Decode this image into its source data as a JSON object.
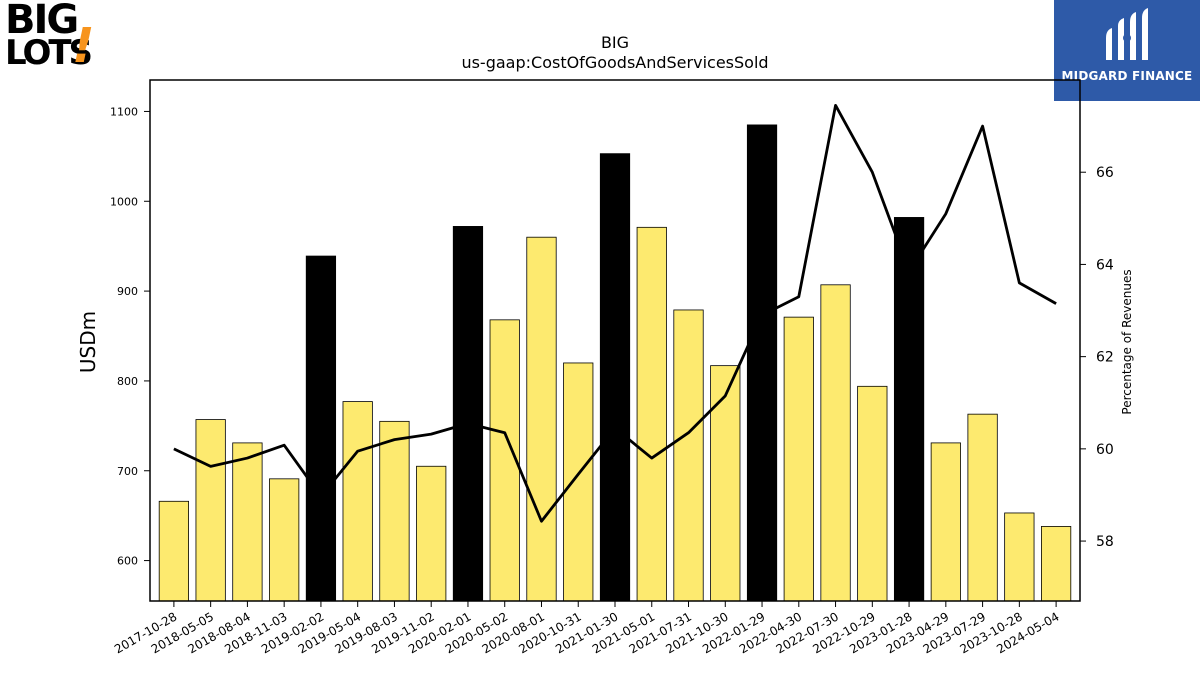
{
  "logos": {
    "company_line1": "BIG",
    "company_line2": "LOTS",
    "company_mark": "!",
    "partner_text": "MIDGARD FINANCE",
    "partner_icon": "midgard-m-icon"
  },
  "colors": {
    "bar_regular": "#fdea6f",
    "bar_highlight": "#000000",
    "line": "#000000",
    "partner_bg": "#2e5aa8",
    "brand_orange": "#f7941d"
  },
  "chart_data": {
    "type": "bar",
    "title": "BIG",
    "subtitle": "us-gaap:CostOfGoodsAndServicesSold",
    "ylabel": "USDm",
    "y2label": "Percentage of Revenues",
    "ylim": [
      555,
      1135
    ],
    "y2lim": [
      56.7,
      68.0
    ],
    "yticks": [
      600,
      700,
      800,
      900,
      1000,
      1100
    ],
    "y2ticks": [
      58,
      60,
      62,
      64,
      66
    ],
    "categories": [
      "2017-10-28",
      "2018-05-05",
      "2018-08-04",
      "2018-11-03",
      "2019-02-02",
      "2019-05-04",
      "2019-08-03",
      "2019-11-02",
      "2020-02-01",
      "2020-05-02",
      "2020-08-01",
      "2020-10-31",
      "2021-01-30",
      "2021-05-01",
      "2021-07-31",
      "2021-10-30",
      "2022-01-29",
      "2022-04-30",
      "2022-07-30",
      "2022-10-29",
      "2023-01-28",
      "2023-04-29",
      "2023-07-29",
      "2023-10-28",
      "2024-05-04"
    ],
    "series": [
      {
        "kind": "bar",
        "axis": "left",
        "values": [
          666,
          757,
          731,
          691,
          939,
          777,
          755,
          705,
          972,
          868,
          960,
          820,
          1053,
          971,
          879,
          817,
          1085,
          871,
          907,
          794,
          982,
          731,
          763,
          653,
          638
        ],
        "highlight": [
          false,
          false,
          false,
          false,
          true,
          false,
          false,
          false,
          true,
          false,
          false,
          false,
          true,
          false,
          false,
          false,
          true,
          false,
          false,
          false,
          true,
          false,
          false,
          false,
          false
        ]
      },
      {
        "kind": "line",
        "axis": "right",
        "values": [
          60.0,
          59.62,
          59.8,
          60.08,
          58.97,
          59.95,
          60.2,
          60.32,
          60.55,
          60.35,
          58.43,
          59.45,
          60.45,
          59.8,
          60.35,
          61.15,
          62.9,
          63.3,
          67.45,
          66.0,
          63.85,
          65.1,
          67.0,
          63.6,
          63.15
        ]
      }
    ],
    "grid": false,
    "legend": "none"
  }
}
